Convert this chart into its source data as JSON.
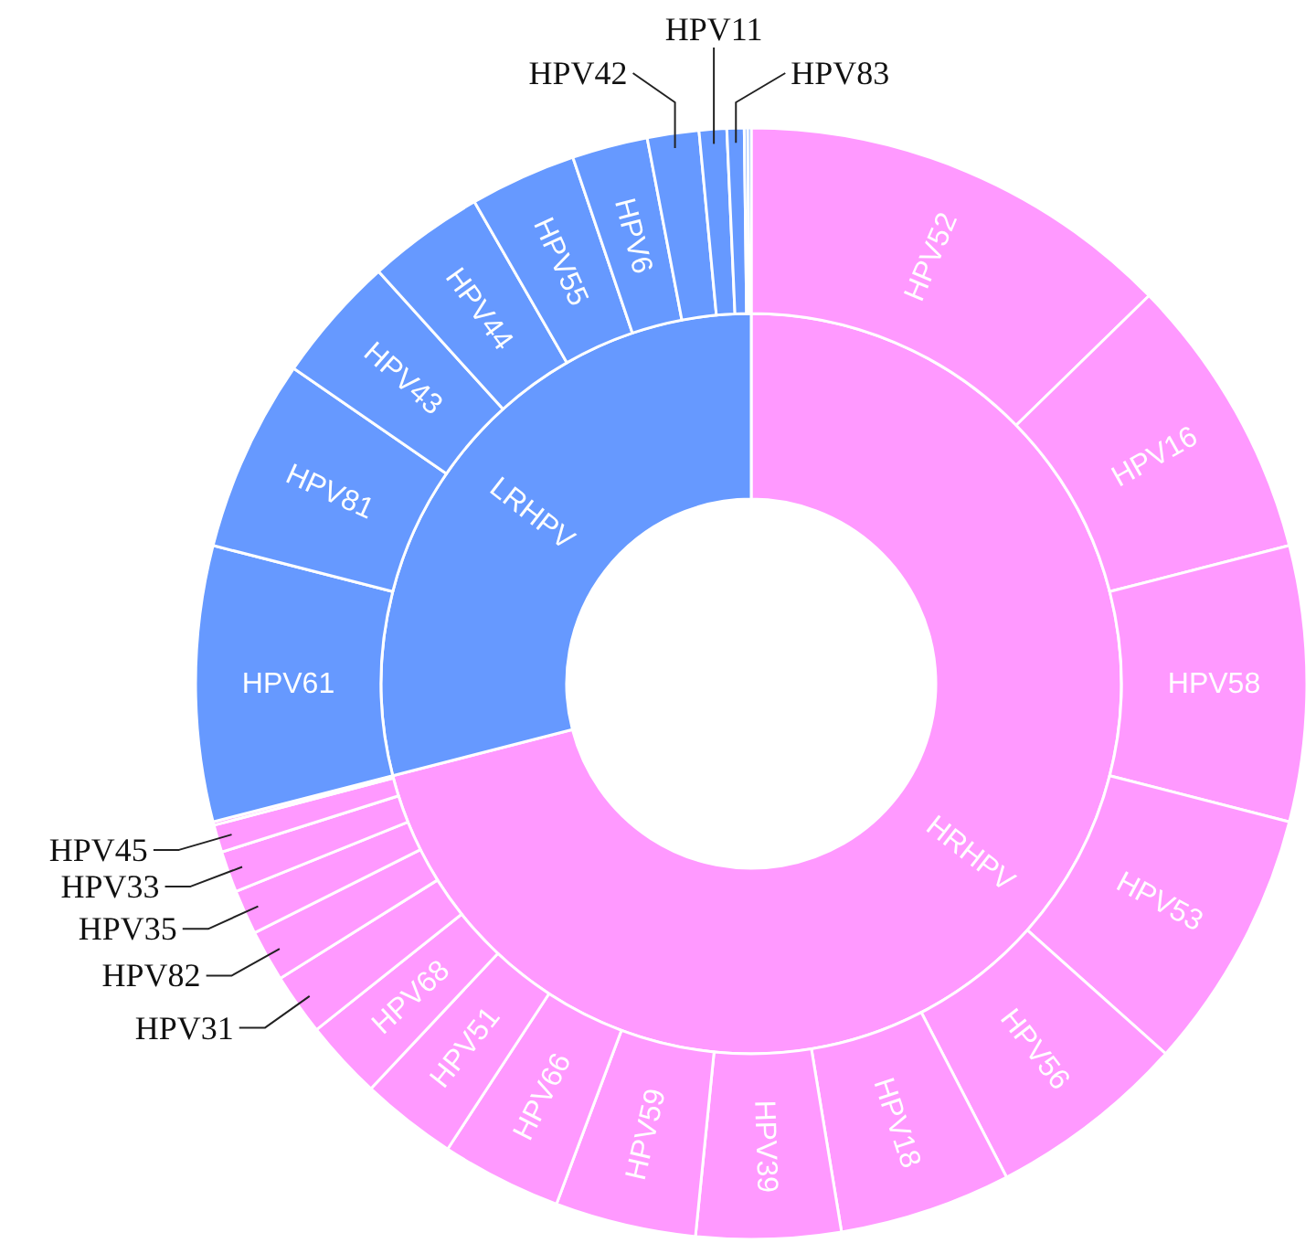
{
  "chart_data": [
    {
      "type": "donut",
      "categories": [
        "HRHPV",
        "LRHPV"
      ],
      "values": [
        71.0,
        29.0
      ],
      "colors": [
        "#ff99ff",
        "#6699ff"
      ]
    },
    {
      "type": "donut",
      "categories": [
        "HPV52",
        "HPV16",
        "HPV58",
        "HPV53",
        "HPV56",
        "HPV18",
        "HPV39",
        "HPV59",
        "HPV66",
        "HPV51",
        "HPV68",
        "HPV31",
        "HPV82",
        "HPV35",
        "HPV33",
        "HPV45",
        null,
        "HPV61",
        "HPV81",
        "HPV43",
        "HPV44",
        "HPV55",
        "HPV6",
        "HPV42",
        "HPV11",
        "HPV83",
        null,
        null
      ],
      "values": [
        12.7,
        8.3,
        8.0,
        7.6,
        5.8,
        5.0,
        4.2,
        4.1,
        3.5,
        2.8,
        2.3,
        1.8,
        1.5,
        1.3,
        1.2,
        0.8,
        0.1,
        8.0,
        5.6,
        3.7,
        3.4,
        3.1,
        2.2,
        1.5,
        0.8,
        0.5,
        0.1,
        0.1
      ],
      "colors": [
        "#ff99ff",
        "#ff99ff",
        "#ff99ff",
        "#ff99ff",
        "#ff99ff",
        "#ff99ff",
        "#ff99ff",
        "#ff99ff",
        "#ff99ff",
        "#ff99ff",
        "#ff99ff",
        "#ff99ff",
        "#ff99ff",
        "#ff99ff",
        "#ff99ff",
        "#ff99ff",
        "#ff99ff",
        "#6699ff",
        "#6699ff",
        "#6699ff",
        "#6699ff",
        "#6699ff",
        "#6699ff",
        "#6699ff",
        "#6699ff",
        "#6699ff",
        "#6699ff",
        "#6699ff"
      ]
    }
  ]
}
